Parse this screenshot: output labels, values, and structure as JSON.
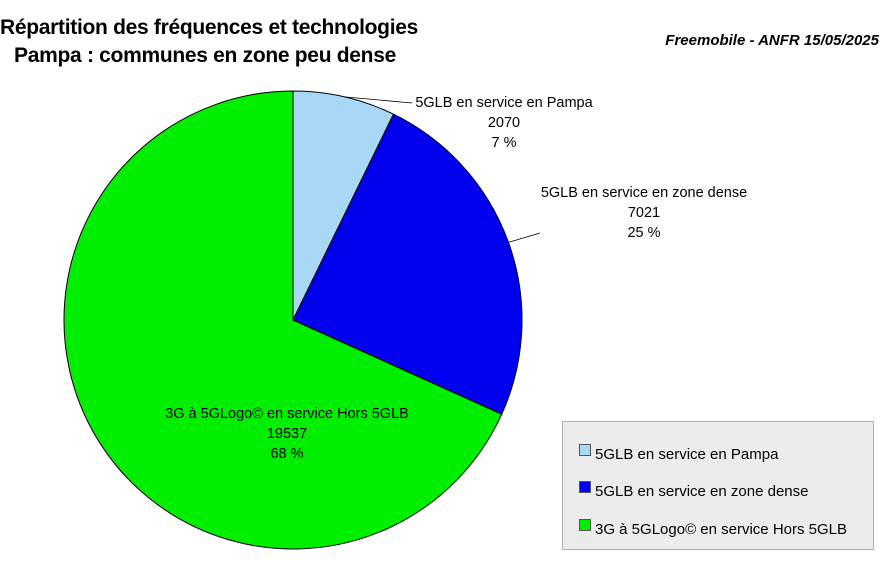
{
  "header": {
    "title_line1": "Répartition des fréquences et technologies",
    "title_line2": "Pampa : communes en zone peu dense",
    "source": "Freemobile - ANFR 15/05/2025"
  },
  "chart_data": {
    "type": "pie",
    "title": "Répartition des fréquences et technologies Pampa : communes en zone peu dense",
    "legend_position": "bottom-right",
    "slices": [
      {
        "label": "5GLB en service en Pampa",
        "value": 2070,
        "percent": "7 %",
        "color": "#a8d8f5"
      },
      {
        "label": "5GLB en service en zone dense",
        "value": 7021,
        "percent": "25 %",
        "color": "#0000ee"
      },
      {
        "label": "3G à 5GLogo© en service Hors 5GLB",
        "value": 19537,
        "percent": "68 %",
        "color": "#00ee00"
      }
    ]
  }
}
